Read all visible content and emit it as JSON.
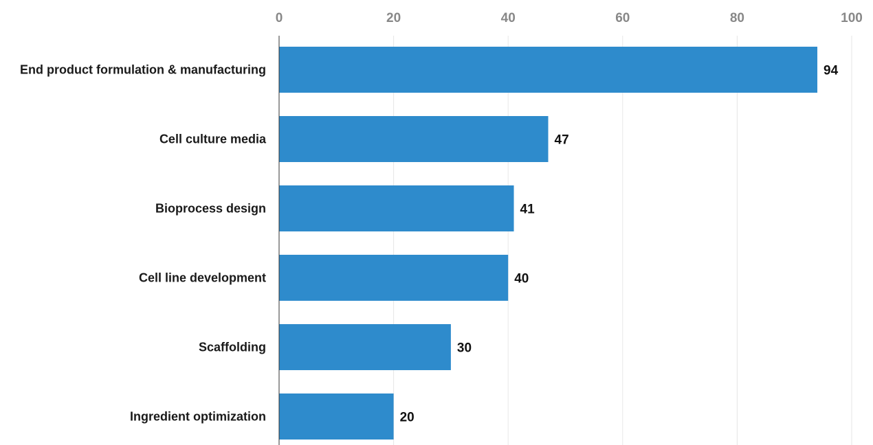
{
  "chart_data": {
    "type": "bar",
    "orientation": "horizontal",
    "categories": [
      "End product formulation & manufacturing",
      "Cell culture media",
      "Bioprocess design",
      "Cell line development",
      "Scaffolding",
      "Ingredient optimization"
    ],
    "values": [
      94,
      47,
      41,
      40,
      30,
      20
    ],
    "data_labels": [
      "94",
      "47",
      "41",
      "40",
      "30",
      "20"
    ],
    "xlim": [
      0,
      100
    ],
    "x_ticks": [
      "0",
      "20",
      "40",
      "60",
      "80",
      "100"
    ],
    "x_axis_position": "top",
    "grid": true,
    "title": "",
    "xlabel": "",
    "ylabel": "",
    "colors": {
      "bar": "#2e8bcc",
      "grid": "#e6e6e6",
      "axis": "#333333",
      "tick_text": "#888888",
      "label_text": "#1a1a1a"
    }
  }
}
